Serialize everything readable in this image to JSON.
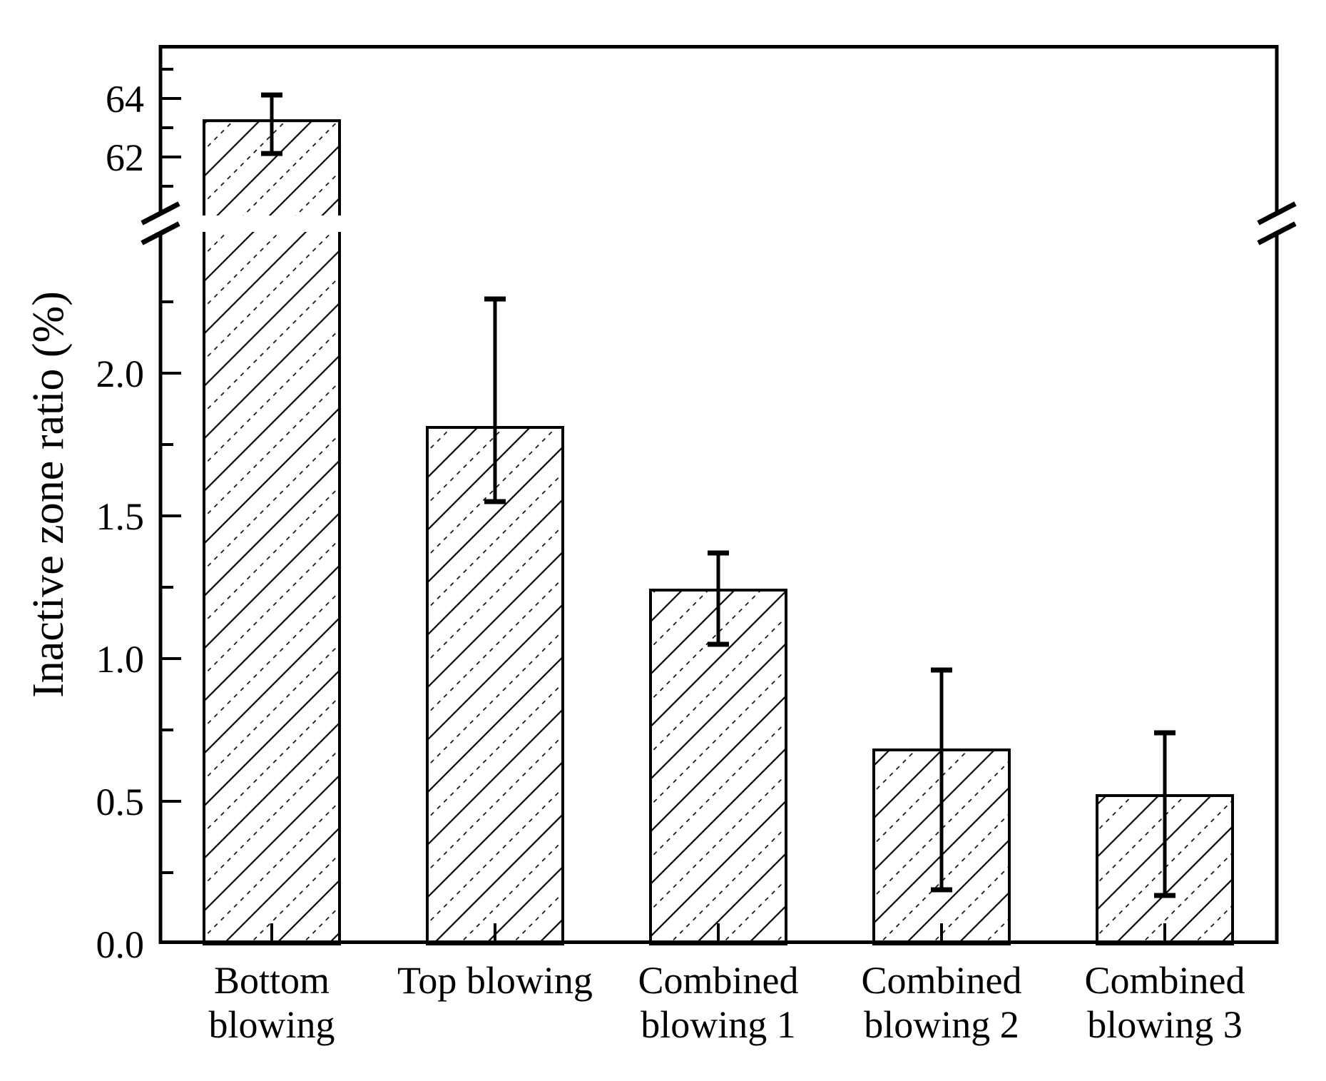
{
  "chart_data": {
    "type": "bar",
    "title": "",
    "xlabel": "",
    "ylabel": "Inactive zone ratio (%)",
    "categories": [
      "Bottom blowing",
      "Top blowing",
      "Combined blowing 1",
      "Combined blowing 2",
      "Combined blowing 3"
    ],
    "category_label_lines": [
      [
        "Bottom",
        "blowing"
      ],
      [
        "Top blowing",
        ""
      ],
      [
        "Combined",
        "blowing 1"
      ],
      [
        "Combined",
        "blowing 2"
      ],
      [
        "Combined",
        "blowing 3"
      ]
    ],
    "series": [
      {
        "name": "Inactive zone ratio",
        "values": [
          63.24,
          1.81,
          1.24,
          0.68,
          0.52
        ],
        "error_low": [
          62.12,
          1.55,
          1.05,
          0.19,
          0.17
        ],
        "error_high": [
          64.12,
          2.26,
          1.37,
          0.96,
          0.74
        ]
      }
    ],
    "axis_break": {
      "enabled": true,
      "lower_segment_range": [
        0.0,
        2.44
      ],
      "upper_segment_range": [
        60.3,
        65.8
      ]
    },
    "y_axis": {
      "lower_major_ticks": [
        {
          "value": 0.0,
          "label": "0.0"
        },
        {
          "value": 0.5,
          "label": "0.5"
        },
        {
          "value": 1.0,
          "label": "1.0"
        },
        {
          "value": 1.5,
          "label": "1.5"
        },
        {
          "value": 2.0,
          "label": "2.0"
        }
      ],
      "lower_minor_ticks": [
        0.25,
        0.75,
        1.25,
        1.75,
        2.25
      ],
      "upper_major_ticks": [
        {
          "value": 62,
          "label": "62"
        },
        {
          "value": 64,
          "label": "64"
        }
      ],
      "upper_minor_ticks": [
        61,
        63,
        65
      ]
    },
    "legend": {
      "visible": false
    },
    "grid": false,
    "bar_style": {
      "fill": "hatch-diagonal-forward",
      "outline_color": "#000000",
      "hatch_color": "#000000",
      "background": "#ffffff"
    },
    "colors": {
      "foreground": "#000000",
      "background": "#ffffff"
    }
  }
}
